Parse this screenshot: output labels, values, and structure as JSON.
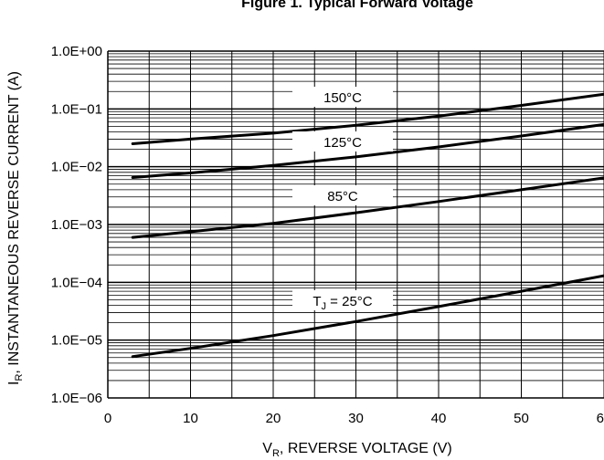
{
  "chart_data": {
    "type": "line",
    "title": "Figure 1. Typical Forward Voltage",
    "xlabel": {
      "main": "V",
      "sub": "R",
      "rest": ", REVERSE VOLTAGE (V)"
    },
    "ylabel": {
      "main": "I",
      "sub": "R",
      "rest": ", INSTANTANEOUS REVERSE CURRENT (A)"
    },
    "x_scale": "linear",
    "y_scale": "log",
    "xlim": [
      0,
      60
    ],
    "ylim": [
      1e-06,
      1
    ],
    "x_ticks": [
      0,
      10,
      20,
      30,
      40,
      50,
      60
    ],
    "x_tick_labels": [
      "0",
      "10",
      "20",
      "30",
      "40",
      "50",
      "60"
    ],
    "y_ticks": [
      1e-06,
      1e-05,
      0.0001,
      0.001,
      0.01,
      0.1,
      1
    ],
    "y_tick_labels": [
      "1.0E−06",
      "1.0E−05",
      "1.0E−04",
      "1.0E−03",
      "1.0E−02",
      "1.0E−01",
      "1.0E+00"
    ],
    "grid": true,
    "series": [
      {
        "name": "150°C",
        "label_parts": {
          "main": "150°C"
        },
        "x": [
          3,
          10,
          20,
          30,
          40,
          50,
          60
        ],
        "y": [
          0.025,
          0.03,
          0.038,
          0.052,
          0.075,
          0.115,
          0.18
        ]
      },
      {
        "name": "125°C",
        "label_parts": {
          "main": "125°C"
        },
        "x": [
          3,
          10,
          20,
          30,
          40,
          50,
          60
        ],
        "y": [
          0.0065,
          0.0078,
          0.0105,
          0.0148,
          0.022,
          0.034,
          0.054
        ]
      },
      {
        "name": "85°C",
        "label_parts": {
          "main": "85°C"
        },
        "x": [
          3,
          10,
          20,
          30,
          40,
          50,
          60
        ],
        "y": [
          0.0006,
          0.00075,
          0.00105,
          0.0016,
          0.0025,
          0.004,
          0.0064
        ]
      },
      {
        "name": "TJ = 25°C",
        "label_parts": {
          "main": "T",
          "sub": "J",
          "rest": " = 25°C"
        },
        "x": [
          3,
          10,
          20,
          30,
          40,
          50,
          60
        ],
        "y": [
          5.2e-06,
          7.2e-06,
          1.2e-05,
          2.1e-05,
          3.8e-05,
          7e-05,
          0.00013
        ]
      }
    ],
    "colors": {
      "line": "#000000",
      "grid": "#000000",
      "background": "#ffffff"
    }
  }
}
